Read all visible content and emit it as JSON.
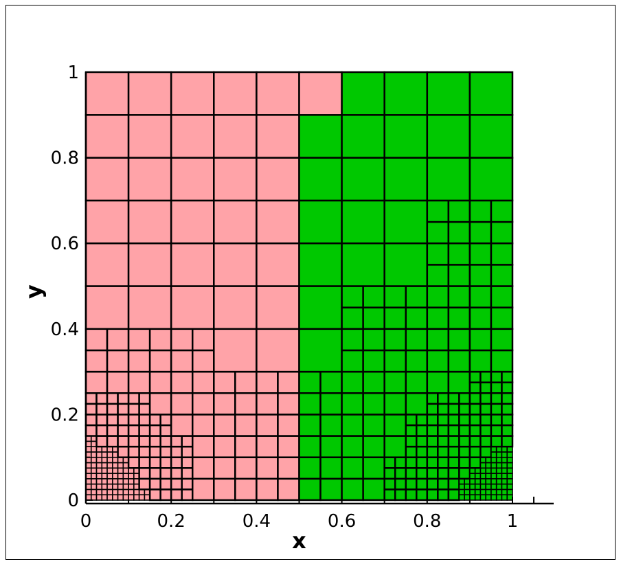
{
  "chart_data": {
    "type": "heatmap",
    "title": "",
    "xlabel": "x",
    "ylabel": "y",
    "xlim": [
      0,
      1
    ],
    "ylim": [
      0,
      1
    ],
    "xticks": [
      "0",
      "0.2",
      "0.4",
      "0.6",
      "0.8",
      "1"
    ],
    "yticks": [
      "0",
      "0.2",
      "0.4",
      "0.6",
      "0.8",
      "1"
    ],
    "grid": false,
    "regions": [
      {
        "name": "",
        "color": "#ffa3a8"
      },
      {
        "name": "",
        "color": "#00c800"
      }
    ],
    "cell_edge_color": "#000000",
    "cells": [
      {
        "x0": 0.0,
        "y0": 0.0,
        "x1": 1.0,
        "y1": 1.0,
        "region": 1
      }
    ]
  }
}
